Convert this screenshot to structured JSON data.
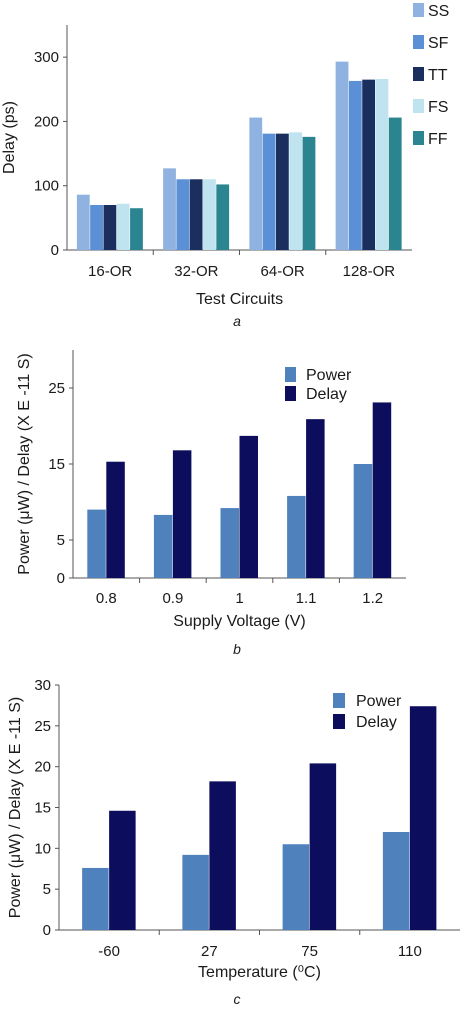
{
  "chart_data": [
    {
      "type": "bar",
      "caption": "a",
      "categories": [
        "16-OR",
        "32-OR",
        "64-OR",
        "128-OR"
      ],
      "series": [
        {
          "name": "SS",
          "color": "#8fb2e0",
          "values": [
            86,
            127,
            206,
            293
          ]
        },
        {
          "name": "SF",
          "color": "#5b8fd6",
          "values": [
            70,
            110,
            181,
            263
          ]
        },
        {
          "name": "TT",
          "color": "#1b2f5e",
          "values": [
            70,
            110,
            181,
            265
          ]
        },
        {
          "name": "FS",
          "color": "#bfe3ef",
          "values": [
            72,
            110,
            183,
            266
          ]
        },
        {
          "name": "FF",
          "color": "#2b8591",
          "values": [
            65,
            102,
            176,
            206
          ]
        }
      ],
      "xlabel": "Test Circuits",
      "ylabel": "Delay (ps)",
      "ylim": [
        0,
        350
      ],
      "yticks": [
        0,
        100,
        200,
        300
      ],
      "legend_position": "right"
    },
    {
      "type": "bar",
      "caption": "b",
      "categories": [
        "0.8",
        "0.9",
        "1",
        "1.1",
        "1.2"
      ],
      "series": [
        {
          "name": "Power",
          "color": "#4f81bd",
          "values": [
            9,
            8.3,
            9.2,
            10.8,
            15
          ]
        },
        {
          "name": "Delay",
          "color": "#0d0d5e",
          "values": [
            15.3,
            16.8,
            18.7,
            20.9,
            23.1
          ]
        }
      ],
      "xlabel": "Supply Voltage (V)",
      "ylabel": "Power (μW) / Delay (X E -11 S)",
      "ylim": [
        0,
        30
      ],
      "yticks": [
        0,
        5,
        15,
        25
      ],
      "legend_position": "top-right"
    },
    {
      "type": "bar",
      "caption": "c",
      "categories": [
        "-60",
        "27",
        "75",
        "110"
      ],
      "series": [
        {
          "name": "Power",
          "color": "#4f81bd",
          "values": [
            7.6,
            9.2,
            10.5,
            12
          ]
        },
        {
          "name": "Delay",
          "color": "#0d0d5e",
          "values": [
            14.6,
            18.2,
            20.4,
            27.4
          ]
        }
      ],
      "xlabel": "Temperature (⁰C)",
      "ylabel": "Power (μW) / Delay (X E -11 S)",
      "ylim": [
        0,
        30
      ],
      "yticks": [
        0,
        5,
        10,
        15,
        20,
        25,
        30
      ],
      "legend_position": "top-right"
    }
  ]
}
